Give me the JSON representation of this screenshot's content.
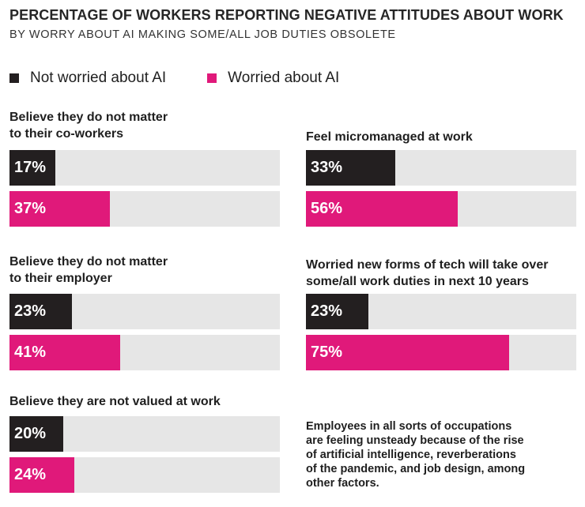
{
  "chart_data": {
    "type": "bar",
    "orientation": "horizontal",
    "title": "PERCENTAGE OF WORKERS REPORTING NEGATIVE ATTITUDES ABOUT WORK",
    "subtitle": "BY WORRY ABOUT AI MAKING SOME/ALL JOB DUTIES OBSOLETE",
    "xlim": [
      0,
      100
    ],
    "value_suffix": "%",
    "grid": false,
    "legend_placement": "top-left",
    "series": [
      {
        "name": "Not worried about AI",
        "color": "#231f20"
      },
      {
        "name": "Worried about AI",
        "color": "#e0197a"
      }
    ],
    "panels": [
      {
        "label_lines": [
          "Believe they do not matter",
          "to their co-workers"
        ],
        "values": [
          17,
          37
        ]
      },
      {
        "label_lines": [
          "Feel micromanaged at work"
        ],
        "values": [
          33,
          56
        ]
      },
      {
        "label_lines": [
          "Believe they do not matter",
          "to their employer"
        ],
        "values": [
          23,
          41
        ]
      },
      {
        "label_lines": [
          "Worried new forms of tech will take over",
          "some/all work duties in next 10 years"
        ],
        "values": [
          23,
          75
        ]
      },
      {
        "label_lines": [
          "Believe they are not valued at work"
        ],
        "values": [
          20,
          24
        ]
      }
    ]
  },
  "note_lines": [
    "Employees in all sorts of occupations",
    "are feeling unsteady because of the rise",
    "of artificial intelligence, reverberations",
    "of the pandemic, and job design, among",
    "other factors."
  ],
  "colors": {
    "track": "#e6e6e6"
  }
}
